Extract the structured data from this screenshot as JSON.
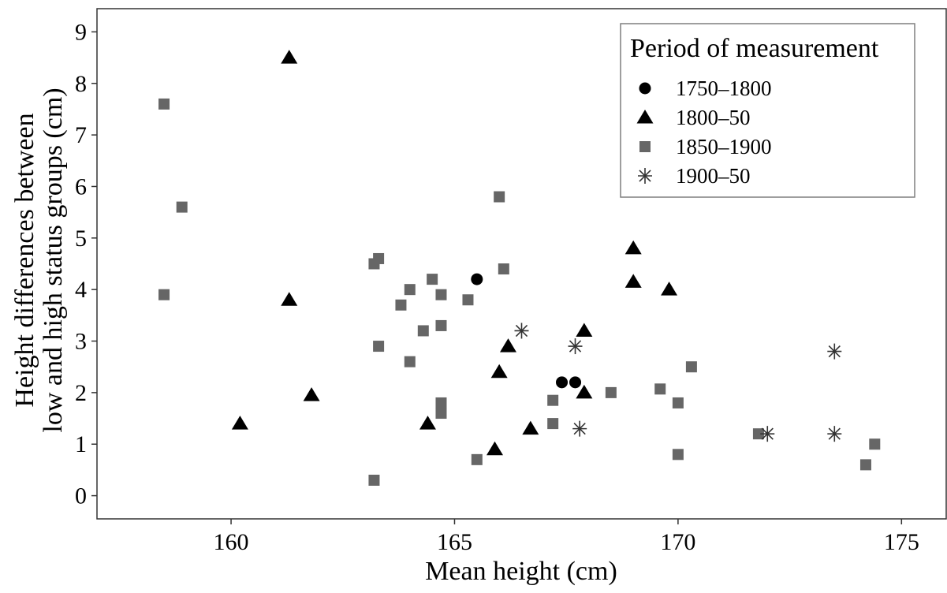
{
  "chart_data": {
    "type": "scatter",
    "xlabel": "Mean height (cm)",
    "ylabel": [
      "Height differences between",
      "low and high status groups (cm)"
    ],
    "xlim": [
      157.0,
      176.0
    ],
    "ylim": [
      -0.45,
      9.45
    ],
    "x_ticks": [
      160,
      165,
      170,
      175
    ],
    "y_ticks": [
      0,
      1,
      2,
      3,
      4,
      5,
      6,
      7,
      8,
      9
    ],
    "grid": false,
    "legend": {
      "title": "Period of measurement",
      "placement": "top-right"
    },
    "series": [
      {
        "name": "1750–1800",
        "marker": "circle",
        "color": "#000000",
        "points": [
          [
            165.5,
            4.2
          ],
          [
            167.4,
            2.2
          ],
          [
            167.7,
            2.2
          ]
        ]
      },
      {
        "name": "1800–50",
        "marker": "triangle",
        "color": "#000000",
        "points": [
          [
            161.3,
            8.5
          ],
          [
            161.3,
            3.8
          ],
          [
            161.8,
            1.95
          ],
          [
            160.2,
            1.4
          ],
          [
            164.4,
            1.4
          ],
          [
            165.9,
            0.9
          ],
          [
            166.0,
            2.4
          ],
          [
            166.2,
            2.9
          ],
          [
            166.7,
            1.3
          ],
          [
            167.9,
            3.2
          ],
          [
            167.9,
            2.0
          ],
          [
            169.0,
            4.8
          ],
          [
            169.0,
            4.15
          ],
          [
            169.8,
            4.0
          ]
        ]
      },
      {
        "name": "1850–1900",
        "marker": "square",
        "color": "#666666",
        "points": [
          [
            158.5,
            7.6
          ],
          [
            158.9,
            5.6
          ],
          [
            158.5,
            3.9
          ],
          [
            163.2,
            4.5
          ],
          [
            163.3,
            4.6
          ],
          [
            163.3,
            2.9
          ],
          [
            163.2,
            0.3
          ],
          [
            163.8,
            3.7
          ],
          [
            164.0,
            4.0
          ],
          [
            164.0,
            2.6
          ],
          [
            164.3,
            3.2
          ],
          [
            164.5,
            4.2
          ],
          [
            164.7,
            3.9
          ],
          [
            164.7,
            3.3
          ],
          [
            164.7,
            1.8
          ],
          [
            164.7,
            1.6
          ],
          [
            165.3,
            3.8
          ],
          [
            165.5,
            0.7
          ],
          [
            166.0,
            5.8
          ],
          [
            166.1,
            4.4
          ],
          [
            167.2,
            1.85
          ],
          [
            167.2,
            1.4
          ],
          [
            168.5,
            2.0
          ],
          [
            169.6,
            2.07
          ],
          [
            170.0,
            1.8
          ],
          [
            170.0,
            0.8
          ],
          [
            170.3,
            2.5
          ],
          [
            171.8,
            1.2
          ],
          [
            174.2,
            0.6
          ],
          [
            174.4,
            1.0
          ]
        ]
      },
      {
        "name": "1900–50",
        "marker": "asterisk",
        "color": "#333333",
        "points": [
          [
            166.5,
            3.2
          ],
          [
            167.7,
            2.9
          ],
          [
            167.8,
            1.3
          ],
          [
            172.0,
            1.2
          ],
          [
            173.5,
            2.8
          ],
          [
            173.5,
            1.2
          ]
        ]
      }
    ]
  }
}
